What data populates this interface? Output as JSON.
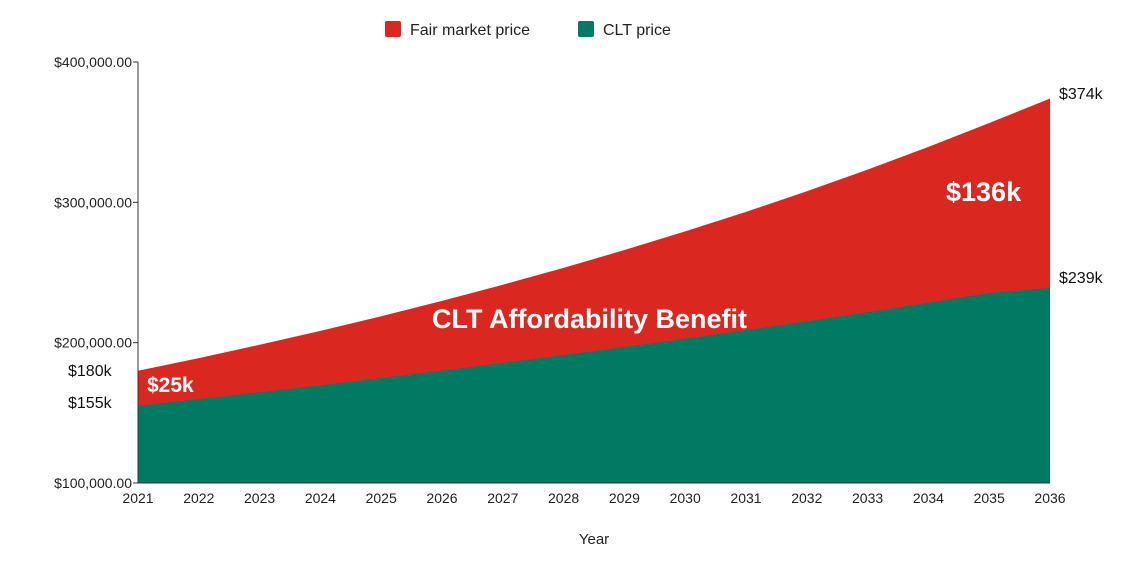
{
  "chart_data": {
    "type": "area",
    "title": "",
    "xlabel": "Year",
    "ylabel": "",
    "x": [
      2021,
      2022,
      2023,
      2024,
      2025,
      2026,
      2027,
      2028,
      2029,
      2030,
      2031,
      2032,
      2033,
      2034,
      2035,
      2036
    ],
    "x_tick_labels": [
      "2021",
      "2022",
      "2023",
      "2024",
      "2025",
      "2026",
      "2027",
      "2028",
      "2029",
      "2030",
      "2031",
      "2032",
      "2033",
      "2034",
      "2035",
      "2036"
    ],
    "ylim": [
      100000,
      400000
    ],
    "y_ticks": [
      100000,
      200000,
      300000,
      400000
    ],
    "y_tick_labels": [
      "$100,000.00",
      "$200,000.00",
      "$300,000.00",
      "$400,000.00"
    ],
    "legend_position": "top-center",
    "series": [
      {
        "name": "Fair market price",
        "color": "#da2720",
        "values": [
          180000,
          189000,
          198500,
          208400,
          218800,
          229800,
          241300,
          253300,
          266000,
          279300,
          293200,
          307900,
          323300,
          339500,
          356500,
          374000
        ]
      },
      {
        "name": "CLT price",
        "color": "#007a62",
        "values": [
          155000,
          159800,
          164600,
          169600,
          174700,
          180000,
          185500,
          191100,
          196900,
          202800,
          208900,
          215200,
          221700,
          228400,
          235300,
          239000
        ]
      }
    ],
    "annotations": {
      "fmp_start": "$180k",
      "clt_start": "$155k",
      "fmp_end": "$374k",
      "clt_end": "$239k",
      "gap_start": "$25k",
      "gap_end": "$136k",
      "middle": "CLT Affordability Benefit"
    }
  }
}
